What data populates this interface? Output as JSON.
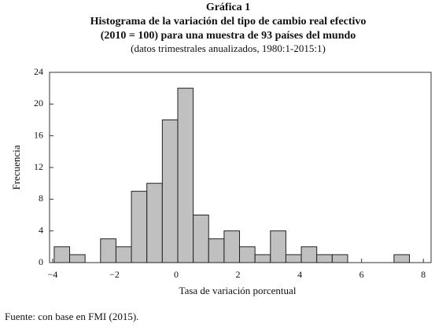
{
  "chart_data": {
    "type": "histogram",
    "title": "Gráfica 1",
    "subtitle": "Histograma de la variación del tipo de cambio real efectivo",
    "subtitle2": "(2010 = 100) para una muestra de 93 países del mundo",
    "note": "(datos trimestrales anualizados, 1980:1-2015:1)",
    "xlabel": "Tasa de variación porcentual",
    "ylabel": "Frecuencia",
    "source": "Fuente: con base en FMI (2015).",
    "bins": [
      -3.95,
      -3.45,
      -2.95,
      -2.45,
      -1.95,
      -1.45,
      -0.95,
      -0.45,
      0.05,
      0.55,
      1.05,
      1.55,
      2.05,
      2.55,
      3.05,
      3.55,
      4.05,
      4.55,
      5.05,
      5.55,
      6.05,
      6.55,
      7.05,
      7.55
    ],
    "counts": [
      2,
      1,
      0,
      3,
      2,
      9,
      10,
      18,
      22,
      6,
      3,
      4,
      2,
      1,
      4,
      1,
      2,
      1,
      1,
      0,
      0,
      0,
      1
    ],
    "color": "#c0c0c0",
    "xlim": [
      -4.1,
      8.25
    ],
    "ylim": [
      0,
      24
    ],
    "xticks": [
      {
        "value": -4,
        "label": "−4"
      },
      {
        "value": -2,
        "label": "−2"
      },
      0,
      2,
      4,
      6,
      8
    ],
    "yticks": [
      0,
      4,
      8,
      12,
      16,
      20,
      24
    ]
  }
}
